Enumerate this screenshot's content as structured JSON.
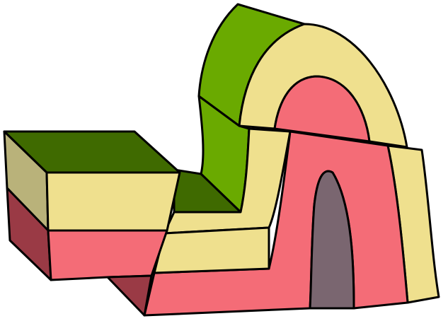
{
  "diagram": {
    "palette": {
      "layer_top_dark": "#3f6a00",
      "layer_top_bright": "#6aaa00",
      "layer_yellow": "#efe08e",
      "layer_yellow_shade": "#b9b27a",
      "layer_pink": "#f46c77",
      "layer_pink_shade": "#9a3a45",
      "core_gray": "#7a6670",
      "outline": "#000000"
    },
    "parts": [
      {
        "id": "faulted-block",
        "layers": [
          "green-top",
          "yellow",
          "pink"
        ]
      },
      {
        "id": "folded-anticline",
        "layers": [
          "green",
          "yellow",
          "pink",
          "gray-core"
        ]
      }
    ]
  }
}
